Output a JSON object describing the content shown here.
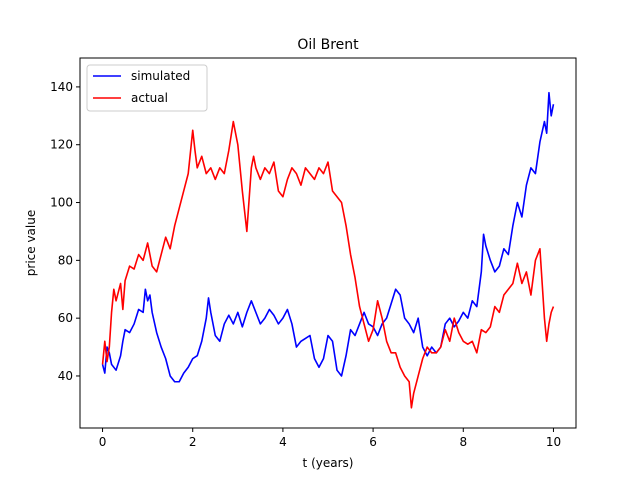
{
  "chart_data": {
    "type": "line",
    "title": "Oil Brent",
    "xlabel": "t (years)",
    "ylabel": "price value",
    "xlim": [
      -0.5,
      10.5
    ],
    "ylim": [
      22,
      150
    ],
    "xticks": [
      0,
      2,
      4,
      6,
      8,
      10
    ],
    "yticks": [
      40,
      60,
      80,
      100,
      120,
      140
    ],
    "grid": false,
    "legend": "upper left",
    "series": [
      {
        "name": "simulated",
        "color": "#0000ff",
        "x": [
          0.0,
          0.05,
          0.1,
          0.15,
          0.2,
          0.3,
          0.4,
          0.45,
          0.5,
          0.6,
          0.7,
          0.8,
          0.9,
          0.95,
          1.0,
          1.05,
          1.1,
          1.2,
          1.3,
          1.4,
          1.5,
          1.6,
          1.7,
          1.8,
          1.9,
          2.0,
          2.1,
          2.2,
          2.3,
          2.35,
          2.4,
          2.5,
          2.6,
          2.7,
          2.8,
          2.9,
          3.0,
          3.1,
          3.2,
          3.3,
          3.4,
          3.5,
          3.6,
          3.7,
          3.8,
          3.9,
          4.0,
          4.1,
          4.2,
          4.3,
          4.4,
          4.5,
          4.6,
          4.7,
          4.8,
          4.9,
          5.0,
          5.1,
          5.2,
          5.3,
          5.4,
          5.5,
          5.6,
          5.7,
          5.8,
          5.9,
          6.0,
          6.1,
          6.2,
          6.3,
          6.4,
          6.5,
          6.6,
          6.7,
          6.8,
          6.9,
          7.0,
          7.1,
          7.2,
          7.3,
          7.4,
          7.5,
          7.6,
          7.7,
          7.8,
          7.9,
          8.0,
          8.1,
          8.2,
          8.3,
          8.4,
          8.45,
          8.5,
          8.6,
          8.7,
          8.8,
          8.9,
          9.0,
          9.1,
          9.2,
          9.3,
          9.4,
          9.5,
          9.6,
          9.7,
          9.8,
          9.85,
          9.9,
          9.95,
          10.0
        ],
        "y": [
          44,
          41,
          50,
          48,
          44,
          42,
          47,
          52,
          56,
          55,
          58,
          63,
          62,
          70,
          66,
          68,
          62,
          55,
          50,
          46,
          40,
          38,
          38,
          41,
          43,
          46,
          47,
          52,
          60,
          67,
          62,
          54,
          52,
          58,
          61,
          58,
          62,
          57,
          62,
          66,
          62,
          58,
          60,
          63,
          61,
          58,
          60,
          63,
          58,
          50,
          52,
          53,
          54,
          46,
          43,
          46,
          54,
          52,
          42,
          40,
          47,
          56,
          54,
          58,
          62,
          58,
          57,
          54,
          58,
          60,
          65,
          70,
          68,
          60,
          58,
          55,
          60,
          50,
          47,
          50,
          48,
          50,
          58,
          60,
          57,
          59,
          62,
          60,
          66,
          64,
          76,
          89,
          85,
          80,
          76,
          78,
          84,
          82,
          92,
          100,
          95,
          106,
          112,
          110,
          121,
          128,
          124,
          138,
          130,
          134
        ]
      },
      {
        "name": "actual",
        "color": "#ff0000",
        "x": [
          0.0,
          0.05,
          0.1,
          0.15,
          0.2,
          0.25,
          0.3,
          0.4,
          0.45,
          0.5,
          0.6,
          0.7,
          0.8,
          0.9,
          1.0,
          1.1,
          1.2,
          1.3,
          1.4,
          1.5,
          1.6,
          1.7,
          1.8,
          1.9,
          2.0,
          2.05,
          2.1,
          2.2,
          2.3,
          2.4,
          2.5,
          2.6,
          2.7,
          2.8,
          2.9,
          2.95,
          3.0,
          3.1,
          3.2,
          3.3,
          3.35,
          3.4,
          3.5,
          3.6,
          3.7,
          3.8,
          3.9,
          4.0,
          4.1,
          4.2,
          4.3,
          4.4,
          4.5,
          4.6,
          4.7,
          4.8,
          4.9,
          5.0,
          5.1,
          5.2,
          5.3,
          5.4,
          5.5,
          5.6,
          5.7,
          5.8,
          5.9,
          6.0,
          6.1,
          6.2,
          6.3,
          6.4,
          6.5,
          6.6,
          6.7,
          6.8,
          6.85,
          6.9,
          7.0,
          7.1,
          7.2,
          7.3,
          7.4,
          7.5,
          7.6,
          7.7,
          7.8,
          7.9,
          8.0,
          8.1,
          8.2,
          8.3,
          8.4,
          8.5,
          8.6,
          8.7,
          8.8,
          8.9,
          9.0,
          9.1,
          9.2,
          9.3,
          9.4,
          9.5,
          9.6,
          9.7,
          9.8,
          9.85,
          9.9,
          9.95,
          10.0
        ],
        "y": [
          44,
          52,
          45,
          50,
          62,
          70,
          66,
          72,
          63,
          73,
          78,
          77,
          82,
          80,
          86,
          78,
          76,
          82,
          88,
          84,
          92,
          98,
          104,
          110,
          125,
          118,
          112,
          116,
          110,
          112,
          108,
          112,
          110,
          118,
          128,
          124,
          120,
          104,
          90,
          112,
          116,
          112,
          108,
          112,
          110,
          114,
          104,
          102,
          108,
          112,
          110,
          106,
          112,
          110,
          108,
          112,
          110,
          114,
          104,
          102,
          100,
          92,
          82,
          74,
          64,
          58,
          52,
          56,
          66,
          60,
          52,
          48,
          48,
          43,
          40,
          38,
          29,
          34,
          40,
          46,
          50,
          48,
          48,
          50,
          56,
          52,
          60,
          55,
          52,
          51,
          52,
          48,
          56,
          55,
          57,
          64,
          62,
          68,
          70,
          72,
          79,
          72,
          76,
          68,
          80,
          84,
          60,
          52,
          58,
          62,
          64
        ]
      }
    ]
  }
}
